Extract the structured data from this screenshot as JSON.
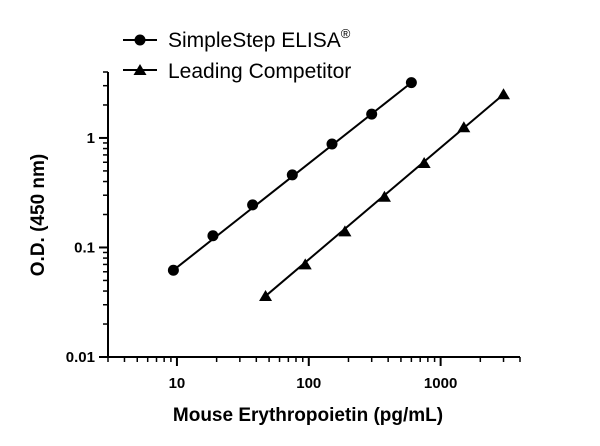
{
  "chart_data": {
    "type": "line",
    "xscale": "log",
    "yscale": "log",
    "xlabel": "Mouse Erythropoietin (pg/mL)",
    "ylabel": "O.D. (450 nm)",
    "xlim": [
      3,
      4000
    ],
    "ylim": [
      0.01,
      4
    ],
    "xticks": [
      10,
      100,
      1000
    ],
    "xtick_labels": [
      "10",
      "100",
      "1000"
    ],
    "yticks": [
      0.01,
      0.1,
      1
    ],
    "ytick_labels": [
      "0.01",
      "0.1",
      "1"
    ],
    "legend_position": "top-left",
    "grid": false,
    "series": [
      {
        "name": "SimpleStep ELISA",
        "name_superscript": "®",
        "marker": "circle",
        "color": "#000000",
        "x": [
          9.4,
          18.75,
          37.5,
          75,
          150,
          300,
          600
        ],
        "y": [
          0.062,
          0.128,
          0.245,
          0.46,
          0.88,
          1.65,
          3.2
        ]
      },
      {
        "name": "Leading Competitor",
        "marker": "triangle",
        "color": "#000000",
        "x": [
          47,
          94,
          188,
          375,
          750,
          1500,
          3000
        ],
        "y": [
          0.036,
          0.07,
          0.14,
          0.29,
          0.59,
          1.25,
          2.5
        ]
      }
    ]
  }
}
